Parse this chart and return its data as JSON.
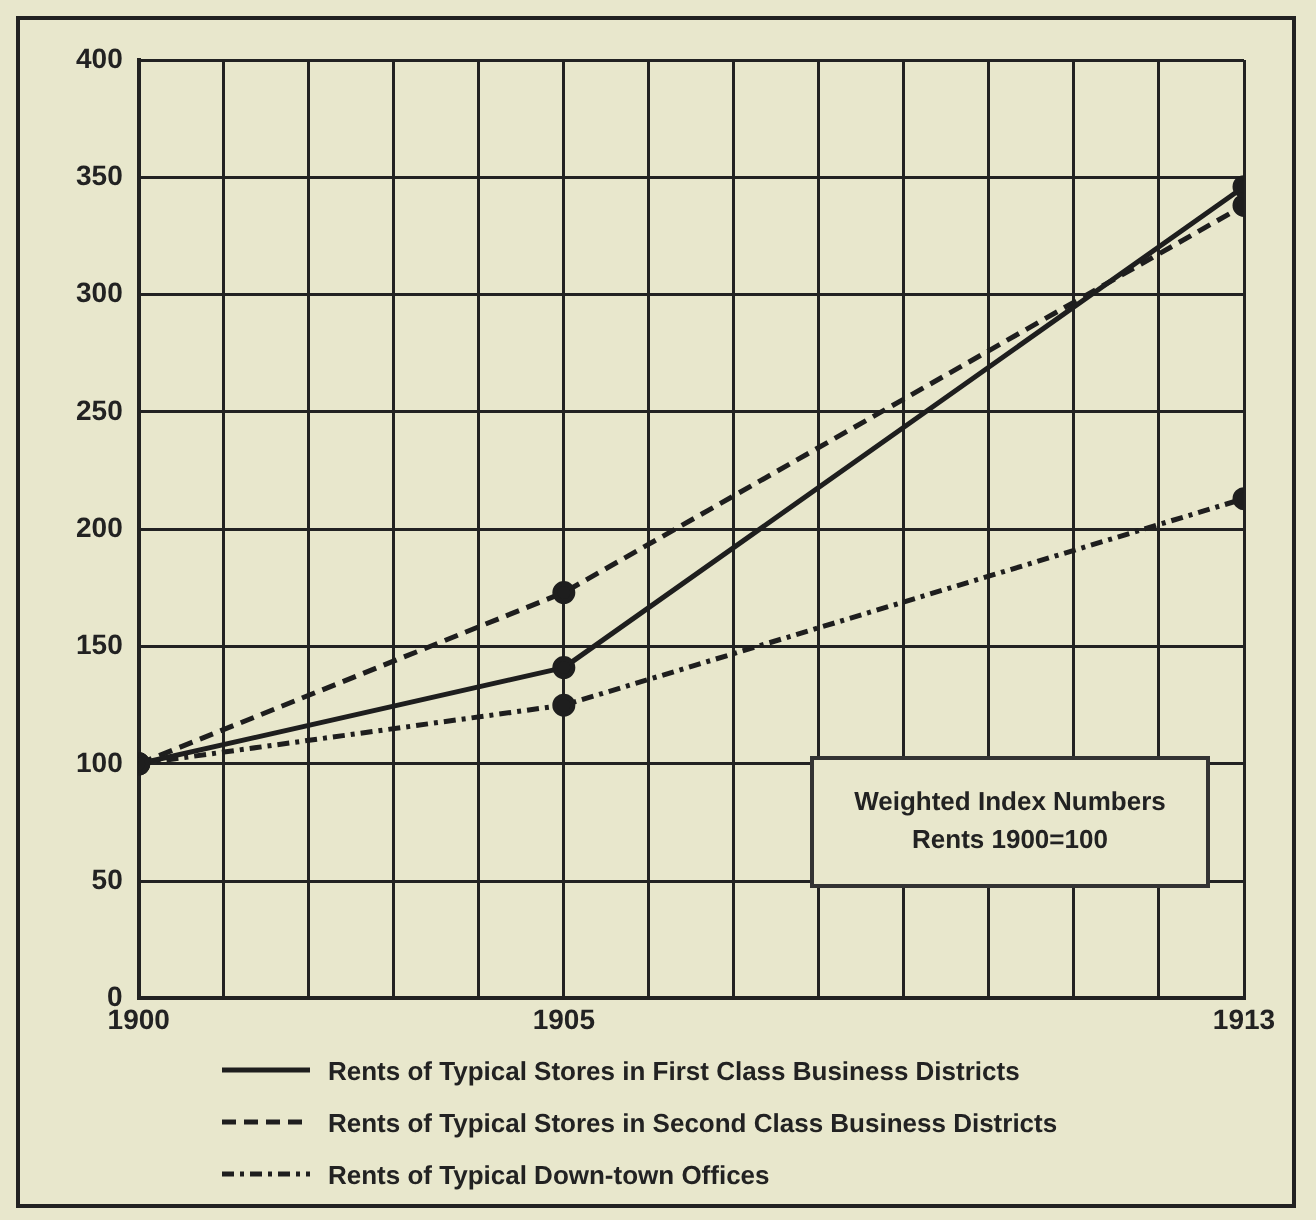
{
  "chart_data": {
    "type": "line",
    "x": [
      1900,
      1905,
      1913
    ],
    "series": [
      {
        "name": "Rents of Typical Stores in First Class Business Districts",
        "color": "#1e1e1e",
        "values": [
          100,
          141,
          346
        ],
        "line_style": "solid"
      },
      {
        "name": "Rents of Typical Stores in Second Class Business Districts",
        "color": "#1e1e1e",
        "values": [
          100,
          173,
          338
        ],
        "line_style": "dashed"
      },
      {
        "name": "Rents of Typical Down-town Offices",
        "color": "#1e1e1e",
        "values": [
          100,
          125,
          213
        ],
        "line_style": "dotted"
      }
    ],
    "xlim": [
      1900,
      1913
    ],
    "xticks": [
      1900,
      {
        "value": 1901,
        "label": null
      },
      {
        "value": 1902,
        "label": null
      },
      {
        "value": 1903,
        "label": null
      },
      {
        "value": 1904,
        "label": null
      },
      1905,
      {
        "value": 1906,
        "label": null
      },
      {
        "value": 1907,
        "label": null
      },
      {
        "value": 1908,
        "label": null
      },
      {
        "value": 1909,
        "label": null
      },
      {
        "value": 1910,
        "label": null
      },
      {
        "value": 1911,
        "label": null
      },
      {
        "value": 1912,
        "label": null
      },
      1913
    ],
    "ylim": [
      0,
      400
    ],
    "yticks": [
      0,
      50,
      100,
      150,
      200,
      250,
      300,
      350,
      400
    ],
    "grid": true,
    "legend": "bottom",
    "marker": "circle",
    "annotations": [
      "Weighted Index Numbers\nRents 1900=100"
    ]
  }
}
